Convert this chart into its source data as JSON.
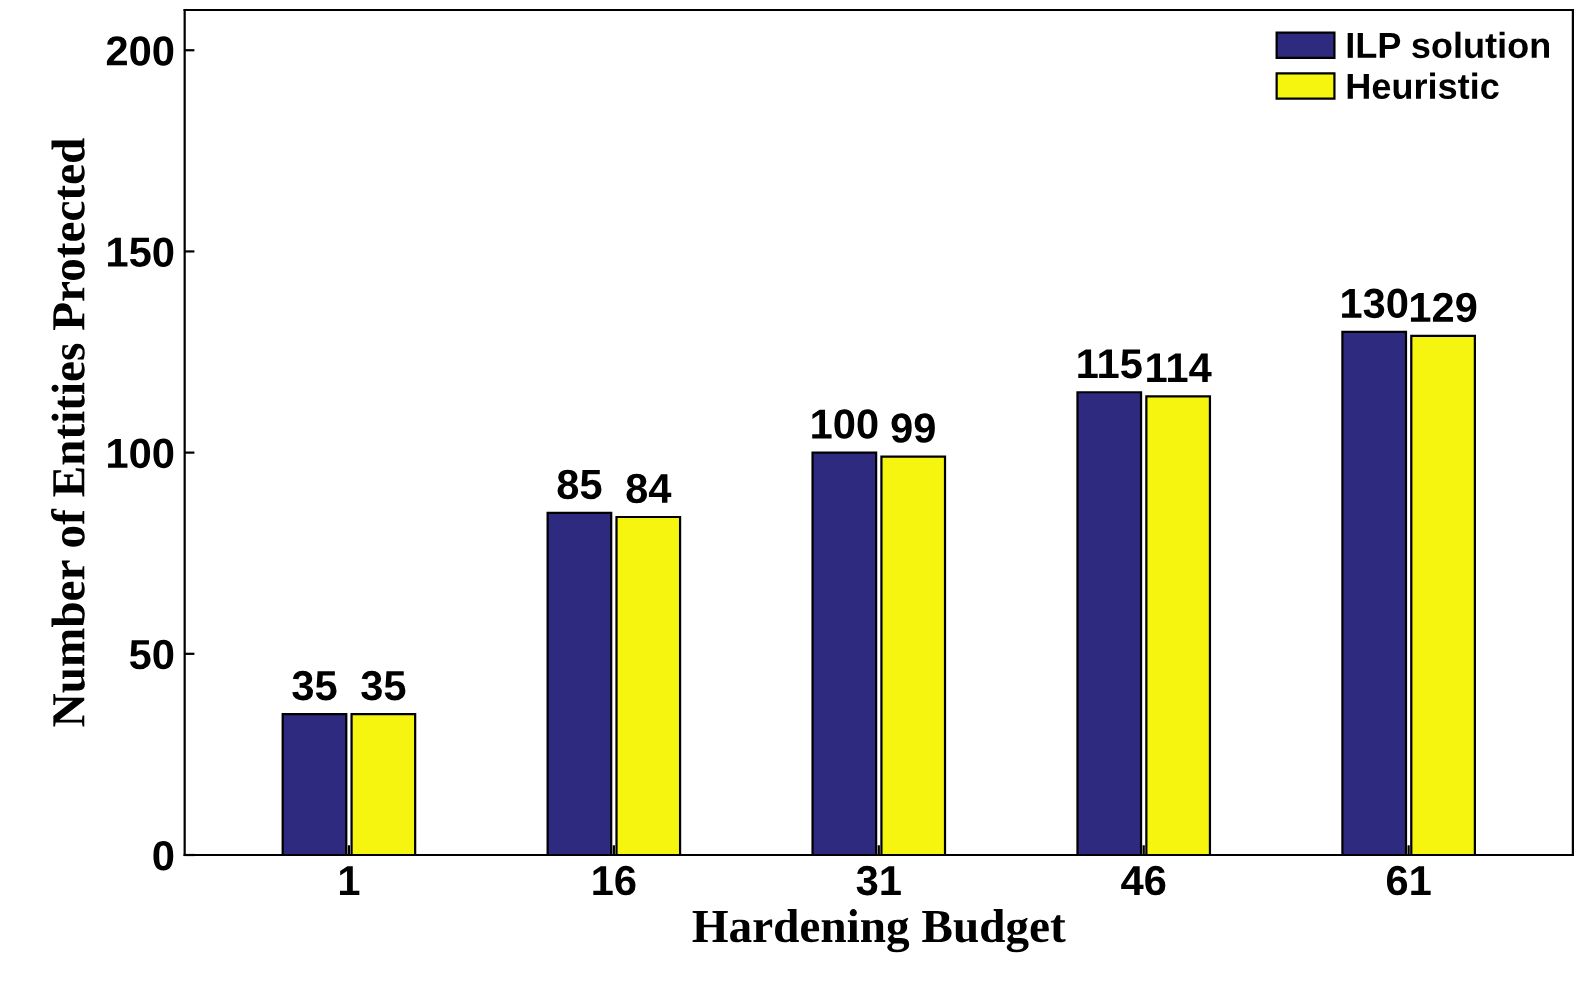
{
  "chart_data": {
    "type": "bar",
    "xlabel": "Hardening Budget",
    "ylabel": "Number of Entities Protected",
    "categories": [
      "1",
      "16",
      "31",
      "46",
      "61"
    ],
    "series": [
      {
        "name": "ILP solution",
        "color": "#2e2a80",
        "values": [
          35,
          85,
          100,
          115,
          130
        ]
      },
      {
        "name": "Heuristic",
        "color": "#f5f510",
        "values": [
          35,
          84,
          99,
          114,
          129
        ]
      }
    ],
    "ylim": [
      0,
      210
    ],
    "yticks": [
      0,
      50,
      100,
      150,
      200
    ],
    "data_labels": true,
    "legend": "top right",
    "grid": false
  }
}
